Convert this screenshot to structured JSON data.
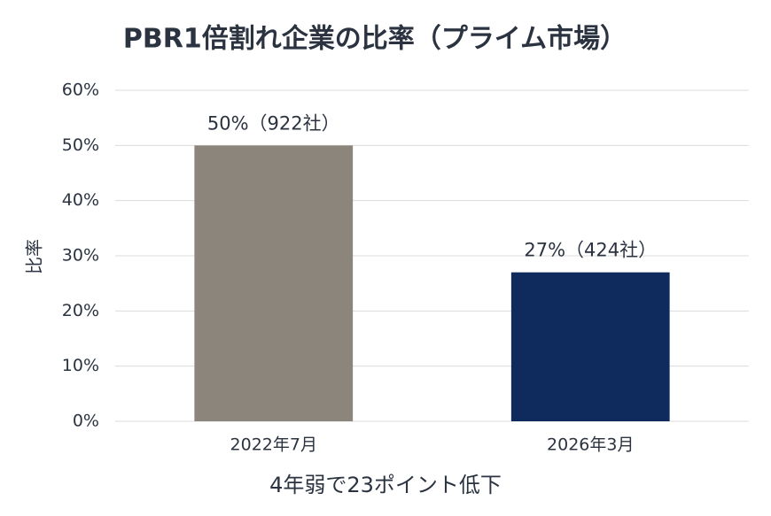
{
  "chart_data": {
    "type": "bar",
    "title": "PBR1倍割れ企業の比率（プライム市場）",
    "categories": [
      "2022年7月",
      "2026年3月"
    ],
    "values": [
      50,
      27
    ],
    "value_labels": [
      "50%（922社）",
      "27%（424社）"
    ],
    "colors": [
      "#8c857b",
      "#0f2a5c"
    ],
    "x_label": "4年弱で23ポイント低下",
    "y_label": "比率",
    "ylim": [
      0,
      60
    ],
    "yticks": [
      {
        "value": 0,
        "label": "0%"
      },
      {
        "value": 10,
        "label": "10%"
      },
      {
        "value": 20,
        "label": "20%"
      },
      {
        "value": 30,
        "label": "30%"
      },
      {
        "value": 40,
        "label": "40%"
      },
      {
        "value": 50,
        "label": "50%"
      },
      {
        "value": 60,
        "label": "60%"
      }
    ],
    "grid": true
  }
}
